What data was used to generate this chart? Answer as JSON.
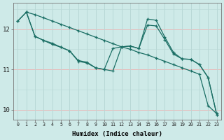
{
  "xlabel": "Humidex (Indice chaleur)",
  "bg_color": "#ceeae8",
  "grid_color_v": "#b8d8d6",
  "grid_color_h": "#e8b8b8",
  "line_color": "#1a6e64",
  "xlim": [
    -0.5,
    23.5
  ],
  "ylim": [
    9.75,
    12.65
  ],
  "yticks": [
    10,
    11,
    12
  ],
  "xticks": [
    0,
    1,
    2,
    3,
    4,
    5,
    6,
    7,
    8,
    9,
    10,
    11,
    12,
    13,
    14,
    15,
    16,
    17,
    18,
    19,
    20,
    21,
    22,
    23
  ],
  "series1_x": [
    0,
    1,
    2,
    3,
    4,
    5,
    6,
    7,
    8,
    9,
    10,
    11,
    12,
    13,
    14,
    15,
    16,
    17,
    18,
    19,
    20,
    21,
    22,
    23
  ],
  "series1_y": [
    12.2,
    12.42,
    12.36,
    12.28,
    12.2,
    12.12,
    12.04,
    11.96,
    11.88,
    11.8,
    11.72,
    11.64,
    11.56,
    11.5,
    11.42,
    11.36,
    11.28,
    11.2,
    11.12,
    11.04,
    10.96,
    10.88,
    10.1,
    9.9
  ],
  "series2_x": [
    0,
    1,
    2,
    3,
    4,
    5,
    6,
    7,
    8,
    9,
    10,
    11,
    12,
    13,
    14,
    15,
    16,
    17,
    18,
    19,
    20,
    21,
    22,
    23
  ],
  "series2_y": [
    12.2,
    12.42,
    11.82,
    11.72,
    11.65,
    11.55,
    11.46,
    11.2,
    11.16,
    11.04,
    11.0,
    11.52,
    11.56,
    11.58,
    11.52,
    12.25,
    12.22,
    11.8,
    11.42,
    11.26,
    11.25,
    11.12,
    10.8,
    9.88
  ],
  "series3_x": [
    1,
    2,
    3,
    4,
    5,
    6,
    7,
    8,
    9,
    10,
    11,
    12,
    13,
    14,
    15,
    16,
    17,
    18,
    19,
    20,
    21,
    22,
    23
  ],
  "series3_y": [
    12.42,
    11.82,
    11.72,
    11.62,
    11.55,
    11.46,
    11.22,
    11.18,
    11.04,
    11.0,
    10.96,
    11.56,
    11.58,
    11.52,
    12.1,
    12.08,
    11.74,
    11.38,
    11.26,
    11.25,
    11.12,
    10.8,
    9.88
  ]
}
